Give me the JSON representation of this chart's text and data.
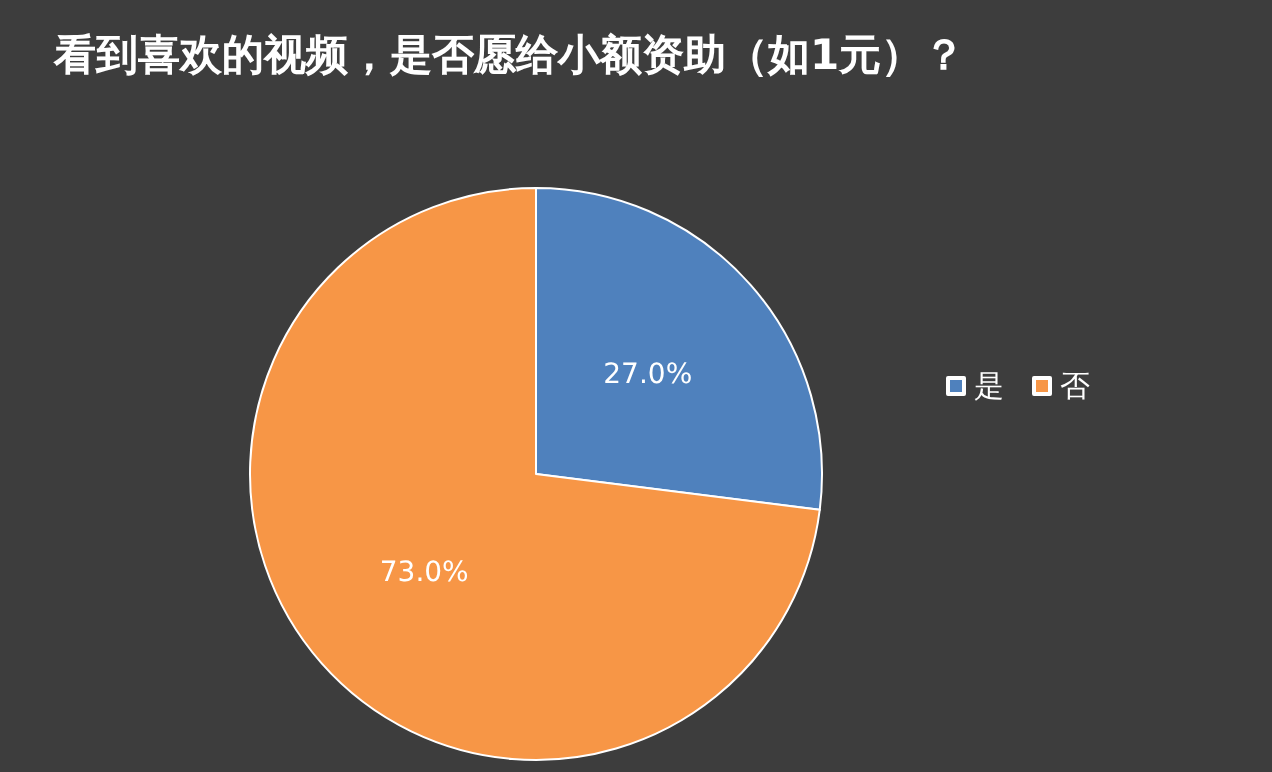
{
  "chart_data": {
    "type": "pie",
    "title": "看到喜欢的视频，是否愿给小额资助（如1元）？",
    "categories": [
      "是",
      "否"
    ],
    "values": [
      27.0,
      73.0
    ],
    "colors": [
      "#4f81bd",
      "#f79646"
    ],
    "value_labels": [
      "27.0%",
      "73.0%"
    ],
    "legend": "right"
  }
}
